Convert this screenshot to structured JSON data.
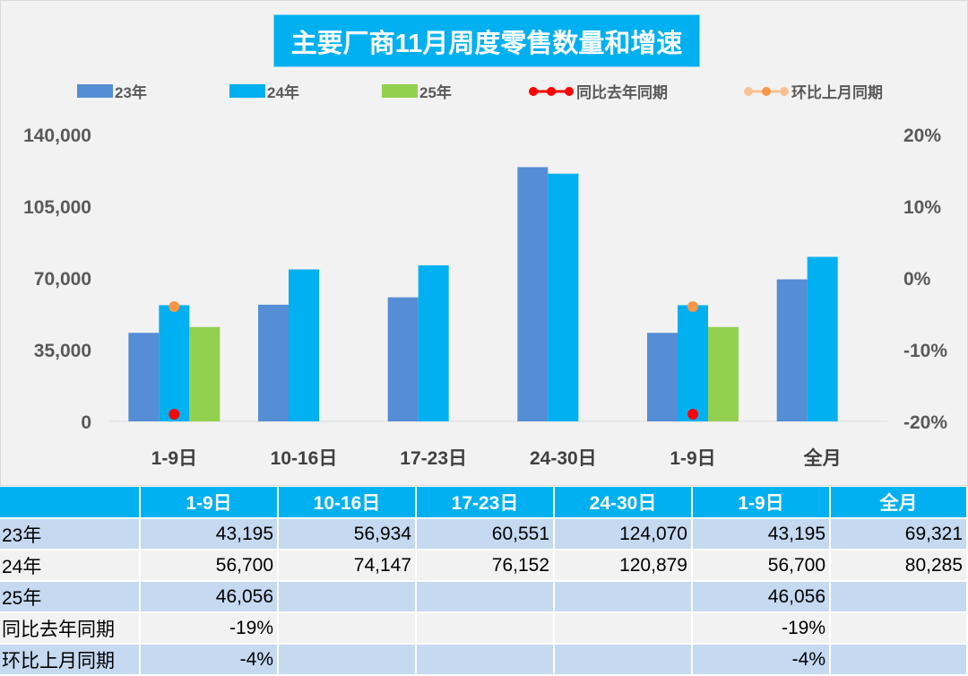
{
  "chart_data": {
    "type": "bar",
    "title": "主要厂商11月周度零售数量和增速",
    "categories": [
      "1-9日",
      "10-16日",
      "17-23日",
      "24-30日",
      "1-9日",
      "全月"
    ],
    "series": [
      {
        "name": "23年",
        "type": "bar",
        "color": "#558ed5",
        "values": [
          43195,
          56934,
          60551,
          124070,
          43195,
          69321
        ]
      },
      {
        "name": "24年",
        "type": "bar",
        "color": "#00b0f0",
        "values": [
          56700,
          74147,
          76152,
          120879,
          56700,
          80285
        ]
      },
      {
        "name": "25年",
        "type": "bar",
        "color": "#92d050",
        "values": [
          46056,
          null,
          null,
          null,
          46056,
          null
        ]
      },
      {
        "name": "同比去年同期",
        "type": "line",
        "axis": "right",
        "color": "#ff0000",
        "values": [
          -0.19,
          null,
          null,
          null,
          -0.19,
          null
        ]
      },
      {
        "name": "环比上月同期",
        "type": "line",
        "axis": "right",
        "color": "#f79646",
        "values": [
          -0.04,
          null,
          null,
          null,
          -0.04,
          null
        ]
      }
    ],
    "ylim": [
      0,
      140000
    ],
    "yticks": [
      "0",
      "35,000",
      "70,000",
      "105,000",
      "140,000"
    ],
    "y2lim": [
      -0.2,
      0.2
    ],
    "y2ticks": [
      "-20%",
      "-10%",
      "0%",
      "10%",
      "20%"
    ],
    "legend": "top",
    "grid": false
  },
  "table": {
    "header": [
      "",
      "1-9日",
      "10-16日",
      "17-23日",
      "24-30日",
      "1-9日",
      "全月"
    ],
    "rows": [
      [
        "23年",
        "43,195",
        "56,934",
        "60,551",
        "124,070",
        "43,195",
        "69,321"
      ],
      [
        "24年",
        "56,700",
        "74,147",
        "76,152",
        "120,879",
        "56,700",
        "80,285"
      ],
      [
        "25年",
        "46,056",
        "",
        "",
        "",
        "46,056",
        ""
      ],
      [
        "同比去年同期",
        "-19%",
        "",
        "",
        "",
        "-19%",
        ""
      ],
      [
        "环比上月同期",
        "-4%",
        "",
        "",
        "",
        "-4%",
        ""
      ]
    ]
  }
}
